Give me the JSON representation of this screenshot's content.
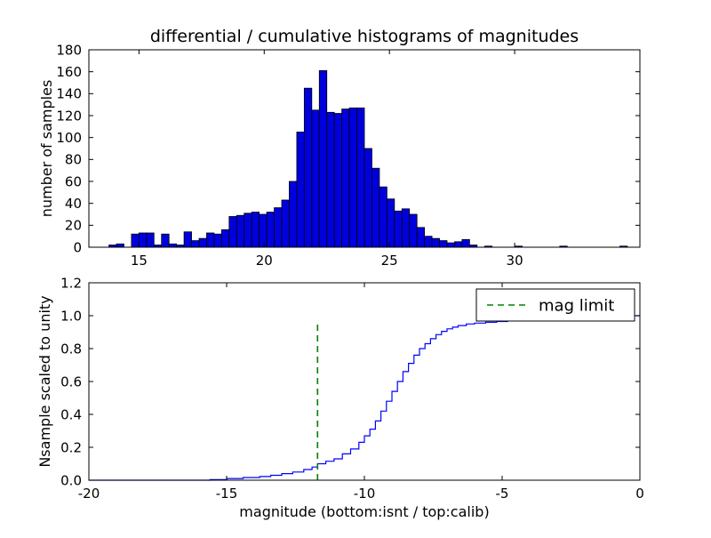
{
  "figure": {
    "background_color": "#ffffff"
  },
  "chart_data": [
    {
      "type": "bar",
      "subplot": "top",
      "title": "differential / cumulative histograms of magnitudes",
      "ylabel": "number of samples",
      "xlim": [
        13,
        35
      ],
      "ylim": [
        0,
        180
      ],
      "xticks": [
        15,
        20,
        25,
        30
      ],
      "xtick_labels": [
        "15",
        "20",
        "25",
        "30"
      ],
      "yticks": [
        0,
        20,
        40,
        60,
        80,
        100,
        120,
        140,
        160,
        180
      ],
      "ytick_labels": [
        "0",
        "20",
        "40",
        "60",
        "80",
        "100",
        "120",
        "140",
        "160",
        "180"
      ],
      "grid": false,
      "bar_color": "#0000dd",
      "bar_edge_color": "#000000",
      "bin_width": 0.3,
      "bars": [
        [
          13.8,
          2
        ],
        [
          14.1,
          3
        ],
        [
          14.7,
          12
        ],
        [
          15.0,
          13
        ],
        [
          15.3,
          13
        ],
        [
          15.6,
          2
        ],
        [
          15.9,
          12
        ],
        [
          16.2,
          3
        ],
        [
          16.5,
          2
        ],
        [
          16.8,
          14
        ],
        [
          17.1,
          6
        ],
        [
          17.4,
          8
        ],
        [
          17.7,
          13
        ],
        [
          18.0,
          12
        ],
        [
          18.3,
          16
        ],
        [
          18.6,
          28
        ],
        [
          18.9,
          29
        ],
        [
          19.2,
          31
        ],
        [
          19.5,
          32
        ],
        [
          19.8,
          30
        ],
        [
          20.1,
          32
        ],
        [
          20.4,
          36
        ],
        [
          20.7,
          43
        ],
        [
          21.0,
          60
        ],
        [
          21.3,
          105
        ],
        [
          21.6,
          145
        ],
        [
          21.9,
          125
        ],
        [
          22.2,
          161
        ],
        [
          22.5,
          123
        ],
        [
          22.8,
          122
        ],
        [
          23.1,
          126
        ],
        [
          23.4,
          127
        ],
        [
          23.7,
          127
        ],
        [
          24.0,
          90
        ],
        [
          24.3,
          72
        ],
        [
          24.6,
          55
        ],
        [
          24.9,
          44
        ],
        [
          25.2,
          33
        ],
        [
          25.5,
          35
        ],
        [
          25.8,
          30
        ],
        [
          26.1,
          18
        ],
        [
          26.4,
          10
        ],
        [
          26.7,
          8
        ],
        [
          27.0,
          6
        ],
        [
          27.3,
          4
        ],
        [
          27.6,
          5
        ],
        [
          27.9,
          7
        ],
        [
          28.2,
          2
        ],
        [
          28.8,
          1
        ],
        [
          30.0,
          1
        ],
        [
          31.8,
          1
        ],
        [
          34.2,
          1
        ]
      ]
    },
    {
      "type": "line",
      "subplot": "bottom",
      "xlabel": "magnitude (bottom:isnt / top:calib)",
      "ylabel": "Nsample scaled to unity",
      "xlim": [
        -20,
        0
      ],
      "ylim": [
        0,
        1.2
      ],
      "xticks": [
        -20,
        -15,
        -10,
        -5,
        0
      ],
      "xtick_labels": [
        "-20",
        "-15",
        "-10",
        "-5",
        "0"
      ],
      "yticks": [
        0,
        0.2,
        0.4,
        0.6,
        0.8,
        1.0,
        1.2
      ],
      "ytick_labels": [
        "0.0",
        "0.2",
        "0.4",
        "0.6",
        "0.8",
        "1.0",
        "1.2"
      ],
      "grid": false,
      "line_color": "#0000ff",
      "drawstyle": "steps-post",
      "step_points": [
        [
          -20,
          0
        ],
        [
          -15.6,
          0.004
        ],
        [
          -15.0,
          0.01
        ],
        [
          -14.4,
          0.016
        ],
        [
          -13.8,
          0.022
        ],
        [
          -13.4,
          0.03
        ],
        [
          -13.0,
          0.04
        ],
        [
          -12.6,
          0.05
        ],
        [
          -12.2,
          0.065
        ],
        [
          -11.9,
          0.08
        ],
        [
          -11.7,
          0.1
        ],
        [
          -11.4,
          0.115
        ],
        [
          -11.1,
          0.13
        ],
        [
          -10.8,
          0.16
        ],
        [
          -10.5,
          0.19
        ],
        [
          -10.2,
          0.23
        ],
        [
          -10.0,
          0.27
        ],
        [
          -9.8,
          0.31
        ],
        [
          -9.6,
          0.36
        ],
        [
          -9.4,
          0.42
        ],
        [
          -9.2,
          0.48
        ],
        [
          -9.0,
          0.54
        ],
        [
          -8.8,
          0.6
        ],
        [
          -8.6,
          0.66
        ],
        [
          -8.4,
          0.71
        ],
        [
          -8.2,
          0.76
        ],
        [
          -8.0,
          0.8
        ],
        [
          -7.8,
          0.83
        ],
        [
          -7.6,
          0.86
        ],
        [
          -7.4,
          0.885
        ],
        [
          -7.2,
          0.905
        ],
        [
          -7.0,
          0.92
        ],
        [
          -6.8,
          0.93
        ],
        [
          -6.6,
          0.94
        ],
        [
          -6.3,
          0.95
        ],
        [
          -6.0,
          0.955
        ],
        [
          -5.6,
          0.96
        ],
        [
          -5.2,
          0.965
        ],
        [
          -4.8,
          0.97
        ],
        [
          -4.4,
          0.975
        ],
        [
          -4.0,
          0.98
        ],
        [
          -3.5,
          0.985
        ],
        [
          -3.0,
          0.99
        ],
        [
          -2.4,
          0.993
        ],
        [
          -1.8,
          0.996
        ],
        [
          -1.2,
          0.998
        ],
        [
          -0.6,
          1.0
        ],
        [
          0,
          1.0
        ]
      ],
      "mag_limit": {
        "x": -11.7,
        "y_top": 0.95,
        "color": "#008000",
        "line_style": "dashed",
        "label": "mag limit"
      },
      "legend": {
        "label": "mag limit",
        "position": "upper right"
      }
    }
  ]
}
